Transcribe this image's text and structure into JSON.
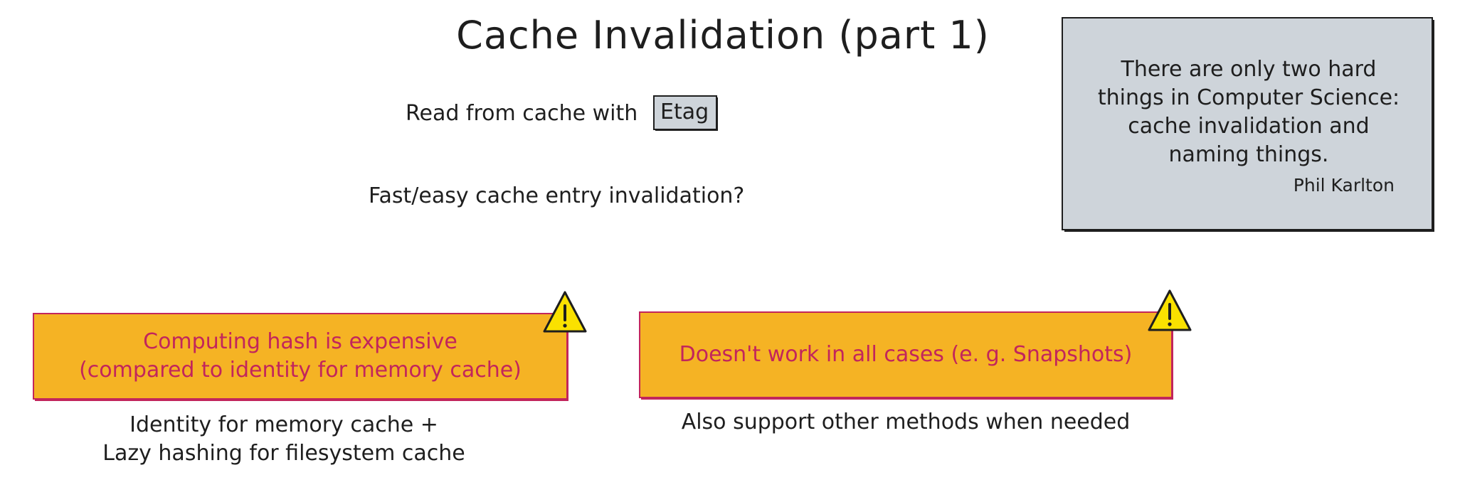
{
  "title": "Cache Invalidation (part 1)",
  "read_line": {
    "prefix": "Read from cache with",
    "boxed": "Etag"
  },
  "question": "Fast/easy cache entry invalidation?",
  "quote": {
    "lines": [
      "There are only two hard",
      "things in Computer Science:",
      "cache invalidation and",
      "naming things."
    ],
    "author": "Phil Karlton"
  },
  "warning_left": {
    "lines": [
      "Computing hash is expensive",
      "(compared to identity for memory cache)"
    ],
    "solution": [
      "Identity for memory cache +",
      "Lazy hashing for filesystem cache"
    ]
  },
  "warning_right": {
    "lines": [
      "Doesn't work in all cases (e. g. Snapshots)"
    ],
    "solution": [
      "Also support other methods when needed"
    ]
  },
  "colors": {
    "warning_fill": "#f5b324",
    "warning_stroke": "#c2255c",
    "quote_fill": "#ced4da",
    "triangle_fill": "#fae100",
    "ink": "#1e1e1e"
  },
  "icons": [
    "warning-triangle-icon",
    "warning-triangle-icon"
  ]
}
